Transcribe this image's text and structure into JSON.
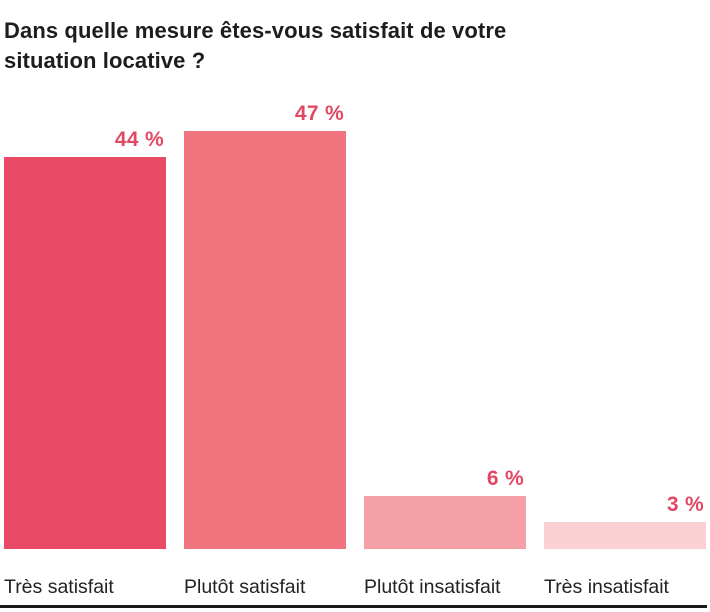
{
  "title": "Dans quelle mesure êtes-vous satisfait de votre situation locative ?",
  "chart_data": {
    "type": "bar",
    "title": "Dans quelle mesure êtes-vous satisfait de votre situation locative ?",
    "categories": [
      "Très satisfait",
      "Plutôt satisfait",
      "Plutôt insatisfait",
      "Très insatisfait"
    ],
    "values": [
      44,
      47,
      6,
      3
    ],
    "value_labels": [
      "44 %",
      "47 %",
      "6 %",
      "3 %"
    ],
    "xlabel": "",
    "ylabel": "",
    "ylim": [
      0,
      50
    ],
    "grid": false,
    "legend_position": "none",
    "bar_colors": [
      "#E94B67",
      "#F0757F",
      "#F5A0A7",
      "#FAD0D3"
    ],
    "value_label_color": "#E24864",
    "title_color": "#1d1d1f",
    "category_label_color": "#232327",
    "axis_line_color": "#19191d"
  }
}
